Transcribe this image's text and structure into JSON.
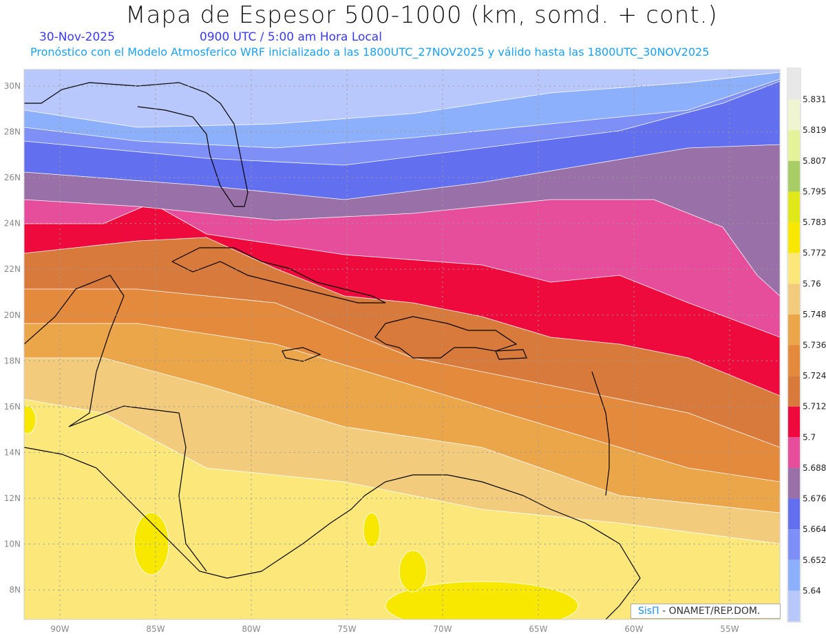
{
  "header": {
    "title": "Mapa de Espesor 500-1000 (km, somd. + cont.)",
    "date": "30-Nov-2025",
    "time": "0900 UTC / 5:00 am Hora Local",
    "subtitle": "Pronóstico con el Modelo Atmosferico WRF inicializado a las 1800UTC_27NOV2025 y válido hasta las  1800UTC_30NOV2025"
  },
  "map": {
    "lat_labels": [
      "30N",
      "28N",
      "26N",
      "24N",
      "22N",
      "20N",
      "18N",
      "16N",
      "14N",
      "12N",
      "10N",
      "8N"
    ],
    "lon_labels": [
      "90W",
      "85W",
      "80W",
      "75W",
      "70W",
      "65W",
      "60W",
      "55W"
    ],
    "credit_brand": "SisΠ",
    "credit_text": "- ONAMET/REP.DOM."
  },
  "colorbar": {
    "labels": [
      "5.831",
      "5.819",
      "5.807",
      "5.795",
      "5.783",
      "5.772",
      "5.76",
      "5.748",
      "5.736",
      "5.724",
      "5.712",
      "5.7",
      "5.688",
      "5.676",
      "5.664",
      "5.652",
      "5.64"
    ],
    "colors": [
      "#e8e8e8",
      "#eef5d0",
      "#e4f29a",
      "#a8cc66",
      "#e0e81a",
      "#f8e800",
      "#fce87a",
      "#f2cc7c",
      "#eca64a",
      "#e48a3c",
      "#d87a3c",
      "#ee0a3c",
      "#e64e9c",
      "#9a70a8",
      "#6270f0",
      "#7e90f8",
      "#8cb0fc",
      "#b8c8fc"
    ]
  }
}
